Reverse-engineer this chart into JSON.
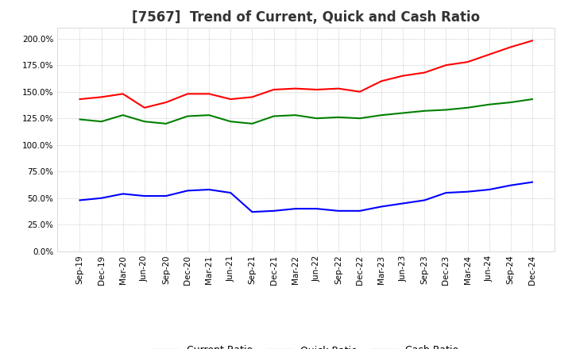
{
  "title": "[7567]  Trend of Current, Quick and Cash Ratio",
  "x_labels": [
    "Sep-19",
    "Dec-19",
    "Mar-20",
    "Jun-20",
    "Sep-20",
    "Dec-20",
    "Mar-21",
    "Jun-21",
    "Sep-21",
    "Dec-21",
    "Mar-22",
    "Jun-22",
    "Sep-22",
    "Dec-22",
    "Mar-23",
    "Jun-23",
    "Sep-23",
    "Dec-23",
    "Mar-24",
    "Jun-24",
    "Sep-24",
    "Dec-24"
  ],
  "current_ratio": [
    143,
    145,
    148,
    135,
    140,
    148,
    148,
    143,
    145,
    152,
    153,
    152,
    153,
    150,
    160,
    165,
    168,
    175,
    178,
    185,
    192,
    198
  ],
  "quick_ratio": [
    124,
    122,
    128,
    122,
    120,
    127,
    128,
    122,
    120,
    127,
    128,
    125,
    126,
    125,
    128,
    130,
    132,
    133,
    135,
    138,
    140,
    143
  ],
  "cash_ratio": [
    48,
    50,
    54,
    52,
    52,
    57,
    58,
    55,
    37,
    38,
    40,
    40,
    38,
    38,
    42,
    45,
    48,
    55,
    56,
    58,
    62,
    65
  ],
  "ylim": [
    0,
    210
  ],
  "yticks": [
    0,
    25,
    50,
    75,
    100,
    125,
    150,
    175,
    200
  ],
  "current_color": "#ff0000",
  "quick_color": "#008000",
  "cash_color": "#0000ff",
  "bg_color": "#ffffff",
  "grid_color": "#aaaaaa",
  "title_fontsize": 12,
  "tick_fontsize": 7.5,
  "legend_fontsize": 9
}
